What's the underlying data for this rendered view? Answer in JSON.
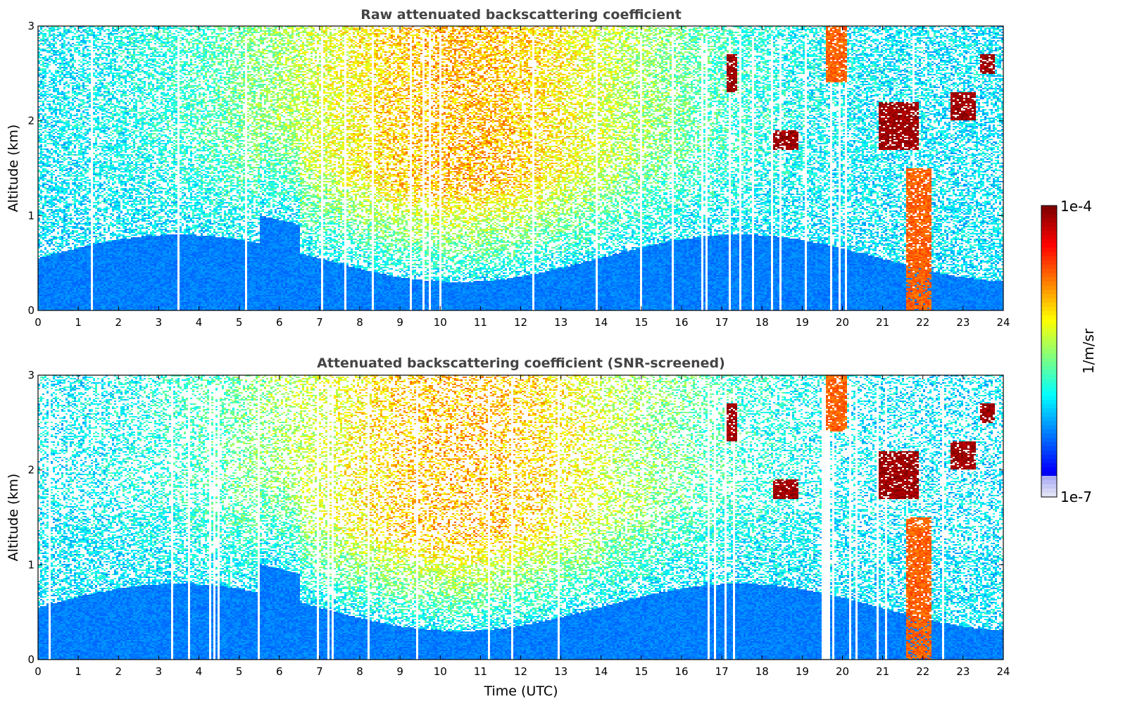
{
  "chart_data": [
    {
      "type": "heatmap",
      "title": "Raw attenuated backscattering coefficient",
      "xlabel": "",
      "ylabel": "Altitude (km)",
      "xlim": [
        0,
        24
      ],
      "ylim": [
        0,
        3
      ],
      "x_ticks": [
        "0",
        "1",
        "2",
        "3",
        "4",
        "5",
        "6",
        "7",
        "8",
        "9",
        "10",
        "11",
        "12",
        "13",
        "14",
        "15",
        "16",
        "17",
        "18",
        "19",
        "20",
        "21",
        "22",
        "23",
        "24"
      ],
      "y_ticks": [
        "0",
        "1",
        "2",
        "3"
      ],
      "screened": false,
      "features": [
        {
          "kind": "boundary_layer",
          "note": "dense aerosol below ~0.5-1.0 km"
        },
        {
          "kind": "cloud",
          "x": [
            19.6,
            20.1
          ],
          "y": [
            2.4,
            3.0
          ],
          "level": "high"
        },
        {
          "kind": "cloud",
          "x": [
            21.6,
            22.2
          ],
          "y": [
            0.0,
            1.5
          ],
          "level": "high"
        },
        {
          "kind": "cloud",
          "x": [
            18.3,
            18.9
          ],
          "y": [
            1.7,
            1.9
          ],
          "level": "very_high"
        },
        {
          "kind": "cloud",
          "x": [
            17.1,
            17.4
          ],
          "y": [
            2.3,
            2.7
          ],
          "level": "very_high"
        },
        {
          "kind": "cloud",
          "x": [
            20.9,
            21.9
          ],
          "y": [
            1.7,
            2.2
          ],
          "level": "very_high"
        },
        {
          "kind": "cloud",
          "x": [
            22.7,
            23.3
          ],
          "y": [
            2.0,
            2.3
          ],
          "level": "very_high"
        },
        {
          "kind": "cloud",
          "x": [
            23.4,
            23.8
          ],
          "y": [
            2.5,
            2.7
          ],
          "level": "very_high"
        }
      ]
    },
    {
      "type": "heatmap",
      "title": "Attenuated backscattering coefficient (SNR-screened)",
      "xlabel": "Time (UTC)",
      "ylabel": "Altitude (km)",
      "xlim": [
        0,
        24
      ],
      "ylim": [
        0,
        3
      ],
      "x_ticks": [
        "0",
        "1",
        "2",
        "3",
        "4",
        "5",
        "6",
        "7",
        "8",
        "9",
        "10",
        "11",
        "12",
        "13",
        "14",
        "15",
        "16",
        "17",
        "18",
        "19",
        "20",
        "21",
        "22",
        "23",
        "24"
      ],
      "y_ticks": [
        "0",
        "1",
        "2",
        "3"
      ],
      "screened": true
    }
  ],
  "colorbar": {
    "min_label": "1e-7",
    "max_label": "1e-4",
    "label": "1/m/sr",
    "colormap": "jet",
    "colors": [
      "#e6e6f7",
      "#0000ff",
      "#00d5ff",
      "#ffee00",
      "#ff2a00",
      "#8b0000"
    ]
  }
}
